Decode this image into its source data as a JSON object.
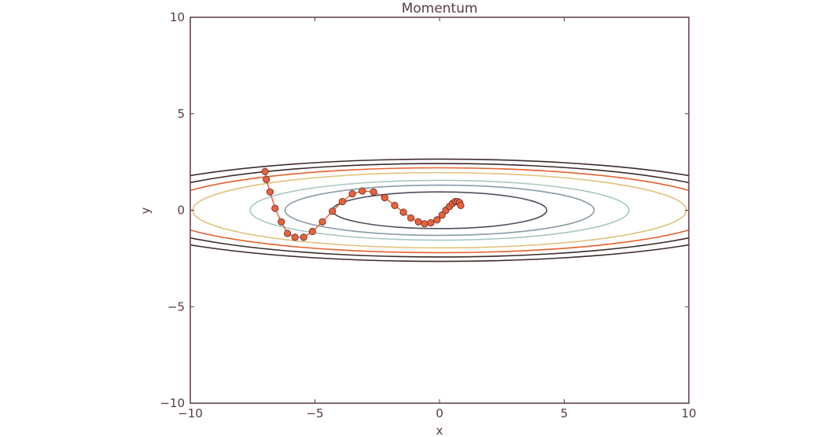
{
  "chart_data": {
    "type": "scatter",
    "title": "Momentum",
    "xlabel": "x",
    "ylabel": "y",
    "xlim": [
      -10,
      10
    ],
    "ylim": [
      -10,
      10
    ],
    "xticks": [
      -10,
      -5,
      0,
      5,
      10
    ],
    "yticks": [
      -10,
      -5,
      0,
      5,
      10
    ],
    "xtick_labels": [
      "−10",
      "−5",
      "0",
      "5",
      "10"
    ],
    "ytick_labels": [
      "−10",
      "−5",
      "0",
      "5",
      "10"
    ],
    "grid": false,
    "contour_levels": [
      {
        "x_radius": 4.3,
        "y_radius": 0.95,
        "color": "#4f4f5e"
      },
      {
        "x_radius": 6.2,
        "y_radius": 1.3,
        "color": "#8a9aa6"
      },
      {
        "x_radius": 7.6,
        "y_radius": 1.55,
        "color": "#a8c8c2"
      },
      {
        "x_radius": 9.9,
        "y_radius": 1.95,
        "color": "#e0c27a"
      },
      {
        "x_radius": 11.3,
        "y_radius": 2.2,
        "color": "#e8602c"
      },
      {
        "x_radius": 12.4,
        "y_radius": 2.42,
        "color": "#3e2a2a"
      },
      {
        "x_radius": 13.6,
        "y_radius": 2.65,
        "color": "#3e2a2a"
      }
    ],
    "series": [
      {
        "marker_color": "#e8613a",
        "line_color": "#e8613a",
        "x": [
          -7.0,
          -6.95,
          -6.8,
          -6.6,
          -6.35,
          -6.1,
          -5.8,
          -5.45,
          -5.1,
          -4.7,
          -4.3,
          -3.9,
          -3.5,
          -3.1,
          -2.65,
          -2.2,
          -1.8,
          -1.45,
          -1.15,
          -0.85,
          -0.6,
          -0.35,
          -0.1,
          0.1,
          0.25,
          0.4,
          0.52,
          0.63,
          0.72,
          0.8,
          0.85
        ],
        "y": [
          2.0,
          1.6,
          0.95,
          0.1,
          -0.6,
          -1.2,
          -1.4,
          -1.4,
          -1.1,
          -0.6,
          -0.05,
          0.45,
          0.85,
          1.0,
          0.95,
          0.65,
          0.25,
          -0.1,
          -0.4,
          -0.6,
          -0.7,
          -0.65,
          -0.5,
          -0.25,
          0.0,
          0.2,
          0.35,
          0.45,
          0.45,
          0.4,
          0.25
        ]
      }
    ]
  }
}
